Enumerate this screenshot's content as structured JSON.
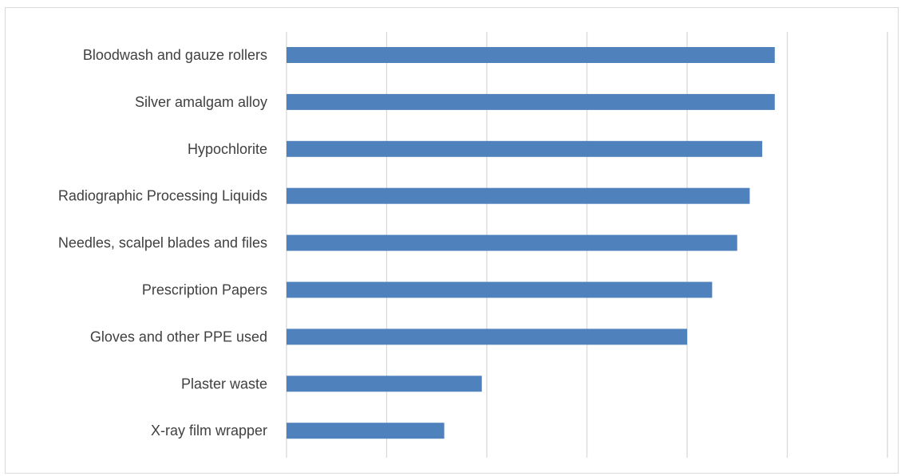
{
  "chart_data": {
    "type": "bar",
    "orientation": "horizontal",
    "title": "",
    "xlabel": "",
    "ylabel": "",
    "categories": [
      "Bloodwash and gauze rollers",
      "Silver amalgam alloy",
      "Hypochlorite",
      "Radiographic Processing Liquids",
      "Needles, scalpel blades and files",
      "Prescription Papers",
      "Gloves and other PPE used",
      "Plaster waste",
      "X-ray film wrapper"
    ],
    "values": [
      97.5,
      97.5,
      95,
      92.5,
      90,
      85,
      80,
      39,
      31.5
    ],
    "xlim": [
      0,
      120
    ],
    "x_gridlines": [
      0,
      20,
      40,
      60,
      80,
      100,
      120
    ],
    "tick_labels_visible": false,
    "grid": true,
    "legend": "none",
    "bar_color": "#4f81bd",
    "grid_color": "#d9d9d9"
  }
}
